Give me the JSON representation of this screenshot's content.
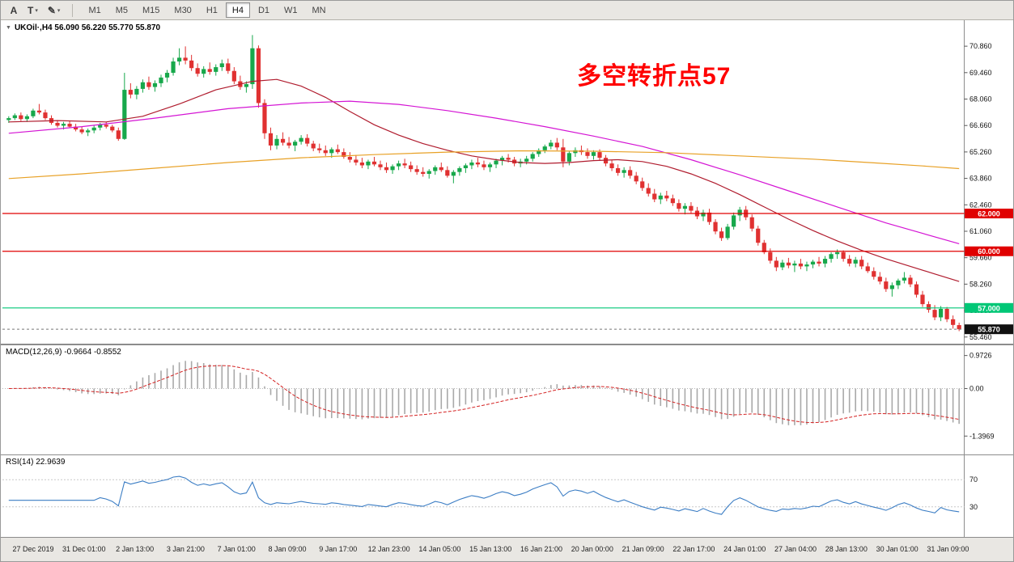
{
  "toolbar": {
    "tools": [
      {
        "label": "A"
      },
      {
        "label": "T"
      },
      {
        "label": "✎"
      }
    ],
    "caret_icon": "▾",
    "timeframes": [
      "M1",
      "M5",
      "M15",
      "M30",
      "H1",
      "H4",
      "D1",
      "W1",
      "MN"
    ],
    "active_timeframe": "H4"
  },
  "chart_data": {
    "type": "candlestick",
    "symbol": "UKOil·,H4",
    "title_line": "UKOil·,H4 56.090 56.220 55.770 55.870",
    "collapse_icon": "▼",
    "ohlc_display": {
      "open": "56.090",
      "high": "56.220",
      "low": "55.770",
      "close": "55.870"
    },
    "annotation": {
      "text": "多空转折点57",
      "color": "#ff0000"
    },
    "colors": {
      "up": "#17a84b",
      "down": "#e03131",
      "ma_fast": "#b01c2e",
      "ma_mid": "#d414d4",
      "ma_slow": "#e8a126",
      "hline_red": "#e00000",
      "hline_green": "#00c776",
      "macd_hist": "#a9a9a9",
      "macd_signal": "#d42222",
      "rsi_line": "#3b7dc4",
      "badge_current": "#111111"
    },
    "y_axis": {
      "range": [
        55.15,
        72.15
      ],
      "ticks": [
        {
          "v": 70.86,
          "label": "70.860"
        },
        {
          "v": 69.46,
          "label": "69.460"
        },
        {
          "v": 68.06,
          "label": "68.060"
        },
        {
          "v": 66.66,
          "label": "66.660"
        },
        {
          "v": 65.26,
          "label": "65.260"
        },
        {
          "v": 63.86,
          "label": "63.860"
        },
        {
          "v": 62.46,
          "label": "62.460"
        },
        {
          "v": 61.06,
          "label": "61.060"
        },
        {
          "v": 59.66,
          "label": "59.660"
        },
        {
          "v": 58.26,
          "label": "58.260"
        },
        {
          "v": 56.86,
          "label": "56.860"
        },
        {
          "v": 55.46,
          "label": "55.460"
        }
      ]
    },
    "x_axis": {
      "labels": [
        "27 Dec 2019",
        "31 Dec 01:00",
        "2 Jan 13:00",
        "3 Jan 21:00",
        "7 Jan 01:00",
        "8 Jan 09:00",
        "9 Jan 17:00",
        "12 Jan 23:00",
        "14 Jan 05:00",
        "15 Jan 13:00",
        "16 Jan 21:00",
        "20 Jan 00:00",
        "21 Jan 09:00",
        "22 Jan 17:00",
        "24 Jan 01:00",
        "27 Jan 04:00",
        "28 Jan 13:00",
        "30 Jan 01:00",
        "31 Jan 09:00"
      ]
    },
    "hlines": [
      {
        "value": 62.0,
        "label": "62.000",
        "color": "#e00000"
      },
      {
        "value": 60.0,
        "label": "60.000",
        "color": "#e00000"
      },
      {
        "value": 57.0,
        "label": "57.000",
        "color": "#00c776"
      }
    ],
    "current_price": {
      "value": 55.87,
      "label": "55.870"
    },
    "moving_averages": [
      {
        "name": "ma-fast-red",
        "color": "#b01c2e",
        "points": [
          [
            0,
            66.85
          ],
          [
            8,
            66.92
          ],
          [
            16,
            66.85
          ],
          [
            22,
            67.15
          ],
          [
            28,
            67.8
          ],
          [
            34,
            68.55
          ],
          [
            40,
            69.0
          ],
          [
            44,
            69.1
          ],
          [
            48,
            68.75
          ],
          [
            52,
            68.15
          ],
          [
            56,
            67.4
          ],
          [
            60,
            66.7
          ],
          [
            64,
            66.15
          ],
          [
            68,
            65.7
          ],
          [
            72,
            65.35
          ],
          [
            76,
            65.05
          ],
          [
            80,
            64.85
          ],
          [
            84,
            64.7
          ],
          [
            88,
            64.65
          ],
          [
            92,
            64.7
          ],
          [
            96,
            64.8
          ],
          [
            100,
            64.85
          ],
          [
            104,
            64.75
          ],
          [
            108,
            64.5
          ],
          [
            112,
            64.1
          ],
          [
            116,
            63.6
          ],
          [
            120,
            63.0
          ],
          [
            124,
            62.35
          ],
          [
            128,
            61.7
          ],
          [
            132,
            61.1
          ],
          [
            136,
            60.55
          ],
          [
            140,
            60.05
          ],
          [
            144,
            59.6
          ],
          [
            148,
            59.2
          ],
          [
            152,
            58.8
          ],
          [
            156,
            58.4
          ]
        ]
      },
      {
        "name": "ma-mid-magenta",
        "color": "#d414d4",
        "points": [
          [
            0,
            66.25
          ],
          [
            12,
            66.6
          ],
          [
            24,
            67.05
          ],
          [
            36,
            67.55
          ],
          [
            48,
            67.85
          ],
          [
            56,
            67.95
          ],
          [
            64,
            67.78
          ],
          [
            72,
            67.45
          ],
          [
            80,
            67.05
          ],
          [
            88,
            66.6
          ],
          [
            96,
            66.1
          ],
          [
            104,
            65.55
          ],
          [
            112,
            64.85
          ],
          [
            120,
            64.05
          ],
          [
            128,
            63.2
          ],
          [
            136,
            62.35
          ],
          [
            144,
            61.5
          ],
          [
            150,
            60.95
          ],
          [
            156,
            60.4
          ]
        ]
      },
      {
        "name": "ma-slow-orange",
        "color": "#e8a126",
        "points": [
          [
            0,
            63.85
          ],
          [
            12,
            64.1
          ],
          [
            24,
            64.4
          ],
          [
            36,
            64.7
          ],
          [
            48,
            64.95
          ],
          [
            60,
            65.12
          ],
          [
            72,
            65.25
          ],
          [
            84,
            65.32
          ],
          [
            96,
            65.3
          ],
          [
            108,
            65.22
          ],
          [
            120,
            65.05
          ],
          [
            132,
            64.88
          ],
          [
            142,
            64.68
          ],
          [
            150,
            64.52
          ],
          [
            156,
            64.38
          ]
        ]
      }
    ],
    "candles": [
      [
        66.95,
        67.15,
        66.8,
        67.05
      ],
      [
        67.05,
        67.3,
        66.95,
        67.2
      ],
      [
        67.2,
        67.35,
        66.9,
        67.0
      ],
      [
        67.0,
        67.25,
        66.85,
        67.15
      ],
      [
        67.15,
        67.55,
        67.05,
        67.45
      ],
      [
        67.45,
        67.8,
        67.25,
        67.35
      ],
      [
        67.35,
        67.5,
        66.95,
        67.05
      ],
      [
        67.05,
        67.2,
        66.7,
        66.8
      ],
      [
        66.8,
        66.95,
        66.55,
        66.65
      ],
      [
        66.65,
        66.85,
        66.45,
        66.75
      ],
      [
        66.75,
        66.9,
        66.55,
        66.6
      ],
      [
        66.6,
        66.75,
        66.35,
        66.45
      ],
      [
        66.45,
        66.6,
        66.2,
        66.3
      ],
      [
        66.3,
        66.5,
        66.1,
        66.4
      ],
      [
        66.4,
        66.65,
        66.25,
        66.55
      ],
      [
        66.55,
        66.8,
        66.4,
        66.7
      ],
      [
        66.7,
        66.85,
        66.5,
        66.6
      ],
      [
        66.6,
        66.7,
        66.3,
        66.4
      ],
      [
        66.4,
        66.55,
        65.85,
        65.95
      ],
      [
        65.95,
        69.45,
        65.9,
        68.55
      ],
      [
        68.55,
        68.9,
        68.1,
        68.3
      ],
      [
        68.3,
        68.75,
        68.05,
        68.6
      ],
      [
        68.6,
        69.1,
        68.4,
        68.95
      ],
      [
        68.95,
        69.25,
        68.55,
        68.7
      ],
      [
        68.7,
        69.05,
        68.45,
        68.9
      ],
      [
        68.9,
        69.35,
        68.7,
        69.2
      ],
      [
        69.2,
        69.6,
        68.95,
        69.45
      ],
      [
        69.45,
        70.25,
        69.3,
        70.05
      ],
      [
        70.05,
        70.75,
        69.85,
        70.25
      ],
      [
        70.25,
        70.85,
        69.9,
        70.1
      ],
      [
        70.1,
        70.4,
        69.55,
        69.7
      ],
      [
        69.7,
        69.95,
        69.25,
        69.4
      ],
      [
        69.4,
        69.8,
        69.2,
        69.65
      ],
      [
        69.65,
        70.0,
        69.35,
        69.5
      ],
      [
        69.5,
        69.9,
        69.3,
        69.75
      ],
      [
        69.75,
        70.15,
        69.55,
        69.95
      ],
      [
        69.95,
        70.2,
        69.4,
        69.55
      ],
      [
        69.55,
        69.75,
        68.85,
        69.0
      ],
      [
        69.0,
        69.3,
        68.55,
        68.7
      ],
      [
        68.7,
        69.0,
        68.4,
        68.85
      ],
      [
        68.85,
        71.45,
        68.6,
        70.75
      ],
      [
        70.75,
        70.9,
        67.6,
        67.85
      ],
      [
        67.85,
        68.05,
        65.95,
        66.25
      ],
      [
        66.25,
        66.55,
        65.35,
        65.6
      ],
      [
        65.6,
        66.15,
        65.4,
        65.95
      ],
      [
        65.95,
        66.3,
        65.6,
        65.75
      ],
      [
        65.75,
        66.05,
        65.45,
        65.6
      ],
      [
        65.6,
        65.9,
        65.3,
        65.8
      ],
      [
        65.8,
        66.15,
        65.65,
        66.0
      ],
      [
        66.0,
        66.2,
        65.55,
        65.7
      ],
      [
        65.7,
        65.85,
        65.3,
        65.45
      ],
      [
        65.45,
        65.7,
        65.2,
        65.35
      ],
      [
        65.35,
        65.6,
        65.05,
        65.2
      ],
      [
        65.2,
        65.5,
        64.95,
        65.4
      ],
      [
        65.4,
        65.65,
        65.15,
        65.25
      ],
      [
        65.25,
        65.45,
        64.9,
        65.0
      ],
      [
        65.0,
        65.25,
        64.7,
        64.85
      ],
      [
        64.85,
        65.1,
        64.55,
        64.7
      ],
      [
        64.7,
        64.95,
        64.4,
        64.55
      ],
      [
        64.55,
        64.85,
        64.35,
        64.75
      ],
      [
        64.75,
        65.0,
        64.5,
        64.6
      ],
      [
        64.6,
        64.8,
        64.3,
        64.45
      ],
      [
        64.45,
        64.7,
        64.15,
        64.3
      ],
      [
        64.3,
        64.6,
        64.1,
        64.5
      ],
      [
        64.5,
        64.8,
        64.3,
        64.65
      ],
      [
        64.65,
        64.9,
        64.4,
        64.55
      ],
      [
        64.55,
        64.75,
        64.2,
        64.35
      ],
      [
        64.35,
        64.55,
        64.05,
        64.2
      ],
      [
        64.2,
        64.45,
        63.95,
        64.1
      ],
      [
        64.1,
        64.35,
        63.85,
        64.25
      ],
      [
        64.25,
        64.55,
        64.05,
        64.45
      ],
      [
        64.45,
        64.7,
        64.2,
        64.3
      ],
      [
        64.3,
        64.5,
        63.9,
        64.0
      ],
      [
        64.0,
        64.3,
        63.6,
        64.2
      ],
      [
        64.2,
        64.5,
        64.0,
        64.4
      ],
      [
        64.4,
        64.65,
        64.15,
        64.55
      ],
      [
        64.55,
        64.85,
        64.35,
        64.7
      ],
      [
        64.7,
        64.95,
        64.45,
        64.6
      ],
      [
        64.6,
        64.8,
        64.3,
        64.45
      ],
      [
        64.45,
        64.7,
        64.2,
        64.6
      ],
      [
        64.6,
        64.9,
        64.4,
        64.8
      ],
      [
        64.8,
        65.05,
        64.55,
        64.95
      ],
      [
        64.95,
        65.15,
        64.7,
        64.85
      ],
      [
        64.85,
        65.0,
        64.5,
        64.65
      ],
      [
        64.65,
        64.9,
        64.45,
        64.75
      ],
      [
        64.75,
        65.05,
        64.6,
        64.9
      ],
      [
        64.9,
        65.25,
        64.75,
        65.15
      ],
      [
        65.15,
        65.45,
        65.0,
        65.35
      ],
      [
        65.35,
        65.65,
        65.2,
        65.55
      ],
      [
        65.55,
        65.9,
        65.4,
        65.75
      ],
      [
        65.75,
        66.0,
        65.35,
        65.5
      ],
      [
        65.5,
        65.95,
        64.45,
        64.75
      ],
      [
        64.75,
        65.3,
        64.55,
        65.2
      ],
      [
        65.2,
        65.5,
        65.0,
        65.35
      ],
      [
        65.35,
        65.6,
        65.1,
        65.25
      ],
      [
        65.25,
        65.45,
        64.9,
        65.05
      ],
      [
        65.05,
        65.35,
        64.85,
        65.25
      ],
      [
        65.25,
        65.4,
        64.8,
        64.95
      ],
      [
        64.95,
        65.1,
        64.5,
        64.65
      ],
      [
        64.65,
        64.85,
        64.25,
        64.4
      ],
      [
        64.4,
        64.6,
        64.0,
        64.15
      ],
      [
        64.15,
        64.45,
        63.9,
        64.3
      ],
      [
        64.3,
        64.5,
        63.85,
        64.0
      ],
      [
        64.0,
        64.2,
        63.55,
        63.7
      ],
      [
        63.7,
        63.9,
        63.2,
        63.35
      ],
      [
        63.35,
        63.6,
        62.9,
        63.05
      ],
      [
        63.05,
        63.3,
        62.6,
        62.75
      ],
      [
        62.75,
        63.1,
        62.5,
        62.95
      ],
      [
        62.95,
        63.2,
        62.65,
        62.8
      ],
      [
        62.8,
        63.0,
        62.4,
        62.55
      ],
      [
        62.55,
        62.75,
        62.1,
        62.25
      ],
      [
        62.25,
        62.55,
        61.95,
        62.4
      ],
      [
        62.4,
        62.6,
        62.0,
        62.15
      ],
      [
        62.15,
        62.35,
        61.7,
        61.85
      ],
      [
        61.85,
        62.2,
        61.6,
        62.05
      ],
      [
        62.05,
        62.25,
        61.4,
        61.55
      ],
      [
        61.55,
        61.7,
        60.9,
        61.05
      ],
      [
        61.05,
        61.25,
        60.55,
        60.7
      ],
      [
        60.7,
        61.45,
        60.6,
        61.3
      ],
      [
        61.3,
        62.05,
        61.15,
        61.9
      ],
      [
        61.9,
        62.35,
        61.6,
        62.2
      ],
      [
        62.2,
        62.4,
        61.65,
        61.8
      ],
      [
        61.8,
        61.95,
        61.05,
        61.2
      ],
      [
        61.2,
        61.35,
        60.3,
        60.45
      ],
      [
        60.45,
        60.6,
        59.85,
        59.95
      ],
      [
        59.95,
        60.15,
        59.35,
        59.5
      ],
      [
        59.5,
        59.7,
        58.95,
        59.15
      ],
      [
        59.15,
        59.55,
        59.0,
        59.4
      ],
      [
        59.4,
        59.65,
        59.1,
        59.25
      ],
      [
        59.25,
        59.5,
        58.9,
        59.35
      ],
      [
        59.35,
        59.6,
        59.05,
        59.2
      ],
      [
        59.2,
        59.45,
        58.95,
        59.3
      ],
      [
        59.3,
        59.55,
        59.1,
        59.45
      ],
      [
        59.45,
        59.7,
        59.2,
        59.35
      ],
      [
        59.35,
        59.75,
        59.15,
        59.6
      ],
      [
        59.6,
        59.95,
        59.4,
        59.85
      ],
      [
        59.85,
        60.1,
        59.6,
        59.95
      ],
      [
        59.95,
        60.05,
        59.45,
        59.6
      ],
      [
        59.6,
        59.8,
        59.2,
        59.35
      ],
      [
        59.35,
        59.7,
        59.15,
        59.55
      ],
      [
        59.55,
        59.75,
        59.05,
        59.2
      ],
      [
        59.2,
        59.4,
        58.85,
        58.95
      ],
      [
        58.95,
        59.15,
        58.5,
        58.65
      ],
      [
        58.65,
        58.9,
        58.25,
        58.4
      ],
      [
        58.4,
        58.6,
        57.85,
        58.0
      ],
      [
        58.0,
        58.35,
        57.6,
        58.2
      ],
      [
        58.2,
        58.55,
        58.0,
        58.45
      ],
      [
        58.45,
        58.9,
        58.3,
        58.6
      ],
      [
        58.6,
        58.75,
        58.1,
        58.25
      ],
      [
        58.25,
        58.4,
        57.55,
        57.7
      ],
      [
        57.7,
        57.9,
        57.05,
        57.2
      ],
      [
        57.2,
        57.35,
        56.75,
        56.9
      ],
      [
        56.9,
        57.15,
        56.35,
        56.5
      ],
      [
        56.5,
        57.1,
        56.3,
        56.95
      ],
      [
        56.95,
        57.05,
        56.25,
        56.4
      ],
      [
        56.4,
        56.6,
        55.9,
        56.1
      ],
      [
        56.09,
        56.22,
        55.77,
        55.87
      ]
    ],
    "macd": {
      "label": "MACD(12,26,9) -0.9664 -0.8552",
      "params": [
        12,
        26,
        9
      ],
      "values_display": [
        "-0.9664",
        "-0.8552"
      ],
      "range": [
        -1.7,
        1.25
      ],
      "ticks": [
        {
          "v": 0.9726,
          "label": "0.9726"
        },
        {
          "v": 0,
          "label": "0.00"
        },
        {
          "v": -1.3969,
          "label": "-1.3969"
        }
      ]
    },
    "rsi": {
      "label": "RSI(14) 22.9639",
      "period": 14,
      "value_display": "22.9639",
      "range": [
        0,
        100
      ],
      "levels": [
        {
          "v": 70,
          "label": "70"
        },
        {
          "v": 30,
          "label": "30"
        }
      ]
    }
  }
}
